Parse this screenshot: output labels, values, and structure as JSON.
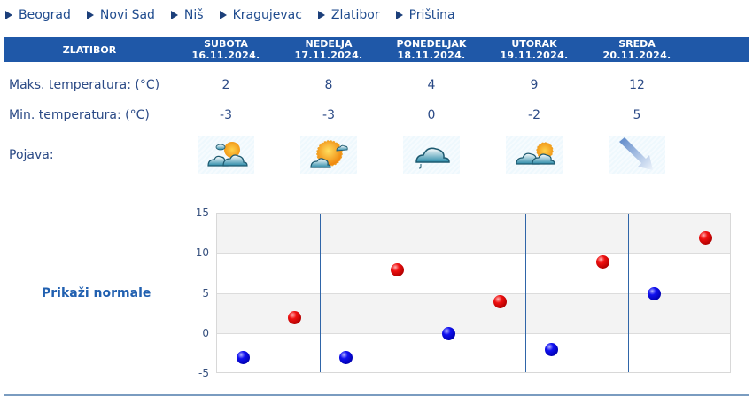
{
  "nav": {
    "cities": [
      {
        "label": "Beograd"
      },
      {
        "label": "Novi Sad"
      },
      {
        "label": "Niš"
      },
      {
        "label": "Kragujevac"
      },
      {
        "label": "Zlatibor"
      },
      {
        "label": "Priština"
      }
    ]
  },
  "header": {
    "location": "ZLATIBOR",
    "days": [
      {
        "name": "SUBOTA",
        "date": "16.11.2024."
      },
      {
        "name": "NEDELJA",
        "date": "17.11.2024."
      },
      {
        "name": "PONEDELJAK",
        "date": "18.11.2024."
      },
      {
        "name": "UTORAK",
        "date": "19.11.2024."
      },
      {
        "name": "SREDA",
        "date": "20.11.2024."
      }
    ]
  },
  "rows": {
    "max_label": "Maks. temperatura: (°C)",
    "min_label": "Min. temperatura: (°C)",
    "pojava_label": "Pojava:",
    "max_values": [
      "2",
      "8",
      "4",
      "9",
      "12"
    ],
    "min_values": [
      "-3",
      "-3",
      "0",
      "-2",
      "5"
    ],
    "pojava_icons": [
      "partly-cloudy-icon",
      "mostly-sunny-icon",
      "cloudy-drizzle-icon",
      "partly-cloudy-sun-icon",
      "wind-arrow-icon"
    ]
  },
  "normals_link": "Prikaži normale",
  "colors": {
    "header_bg": "#1f58a8",
    "text": "#2b4a86",
    "max_dot": "#e00000",
    "min_dot": "#0000d0",
    "divider": "#2f65a8"
  },
  "chart_data": {
    "type": "scatter",
    "title": "",
    "xlabel": "",
    "ylabel": "",
    "categories": [
      "16.11.2024.",
      "17.11.2024.",
      "18.11.2024.",
      "19.11.2024.",
      "20.11.2024."
    ],
    "series": [
      {
        "name": "Min. temperatura",
        "color": "#0000d0",
        "values": [
          -3,
          -3,
          0,
          -2,
          5
        ]
      },
      {
        "name": "Maks. temperatura",
        "color": "#e00000",
        "values": [
          2,
          8,
          4,
          9,
          12
        ]
      }
    ],
    "ylim": [
      -5,
      15
    ],
    "yticks": [
      "15",
      "10",
      "5",
      "0",
      "-5"
    ],
    "grid": true,
    "alternating_bands": true,
    "legend": "none"
  }
}
